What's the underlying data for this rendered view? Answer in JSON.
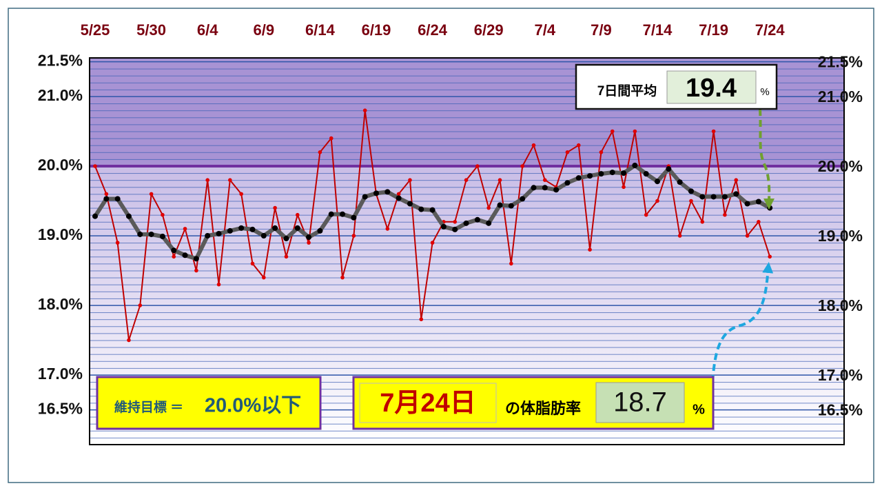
{
  "chart_data": {
    "type": "line",
    "categories": [
      "5/25",
      null,
      null,
      null,
      null,
      "5/30",
      null,
      null,
      null,
      null,
      "6/4",
      null,
      null,
      null,
      null,
      "6/9",
      null,
      null,
      null,
      null,
      "6/14",
      null,
      null,
      null,
      null,
      "6/19",
      null,
      null,
      null,
      null,
      "6/24",
      null,
      null,
      null,
      null,
      "6/29",
      null,
      null,
      null,
      null,
      "7/4",
      null,
      null,
      null,
      null,
      "7/9",
      null,
      null,
      null,
      null,
      "7/14",
      null,
      null,
      null,
      null,
      "7/19",
      null,
      null,
      null,
      null,
      "7/24"
    ],
    "series": [
      {
        "color": "#c00000",
        "marker_color": "#e00000",
        "line_width": 2,
        "values": [
          20.0,
          19.6,
          18.9,
          17.5,
          18.0,
          19.6,
          19.3,
          18.7,
          19.1,
          18.5,
          19.8,
          18.3,
          19.8,
          19.6,
          18.6,
          18.4,
          19.4,
          18.7,
          19.3,
          18.9,
          20.2,
          20.4,
          18.4,
          19.0,
          20.8,
          19.6,
          19.1,
          19.6,
          19.8,
          17.8,
          18.9,
          19.2,
          19.2,
          19.8,
          20.0,
          19.4,
          19.8,
          18.6,
          20.0,
          20.3,
          19.8,
          19.7,
          20.2,
          20.3,
          18.8,
          20.2,
          20.5,
          19.7,
          20.5,
          19.3,
          19.5,
          20.0,
          19.0,
          19.5,
          19.2,
          20.5,
          19.3,
          19.8,
          19.0,
          19.2,
          18.7
        ]
      },
      {
        "color": "#5a5a5a",
        "marker_color": "#000000",
        "line_width": 6,
        "values": [
          19.28,
          19.53,
          19.53,
          19.28,
          19.02,
          19.02,
          18.99,
          18.79,
          18.72,
          18.67,
          19.0,
          19.03,
          19.07,
          19.11,
          19.09,
          19.0,
          19.11,
          18.96,
          19.11,
          18.98,
          19.07,
          19.31,
          19.31,
          19.26,
          19.56,
          19.61,
          19.63,
          19.54,
          19.46,
          19.38,
          19.37,
          19.13,
          19.09,
          19.18,
          19.23,
          19.18,
          19.44,
          19.43,
          19.53,
          19.69,
          19.69,
          19.66,
          19.76,
          19.83,
          19.86,
          19.89,
          19.91,
          19.9,
          20.01,
          19.89,
          19.78,
          19.96,
          19.77,
          19.64,
          19.56,
          19.56,
          19.56,
          19.6,
          19.46,
          19.49,
          19.4
        ]
      }
    ],
    "ylim": [
      16.0,
      21.5
    ],
    "yticks": [
      {
        "value": 16.5,
        "label": "16.5%"
      },
      {
        "value": 17.0,
        "label": "17.0%"
      },
      {
        "value": 18.0,
        "label": "18.0%"
      },
      {
        "value": 19.0,
        "label": "19.0%"
      },
      {
        "value": 20.0,
        "label": "20.0%"
      },
      {
        "value": 21.0,
        "label": "21.0%"
      },
      {
        "value": 21.5,
        "label": "21.5%"
      }
    ],
    "grid": true,
    "target": 20.0,
    "target_color": "#7030a0",
    "average_box": {
      "label": "7日間平均",
      "value": 19.4,
      "unit": "%"
    },
    "goal_box": {
      "label": "維持目標 ＝",
      "text": "20.0%以下"
    },
    "today_box": {
      "date": "7月24日",
      "label": "の体脂肪率",
      "value": 18.7,
      "unit": "%"
    }
  }
}
